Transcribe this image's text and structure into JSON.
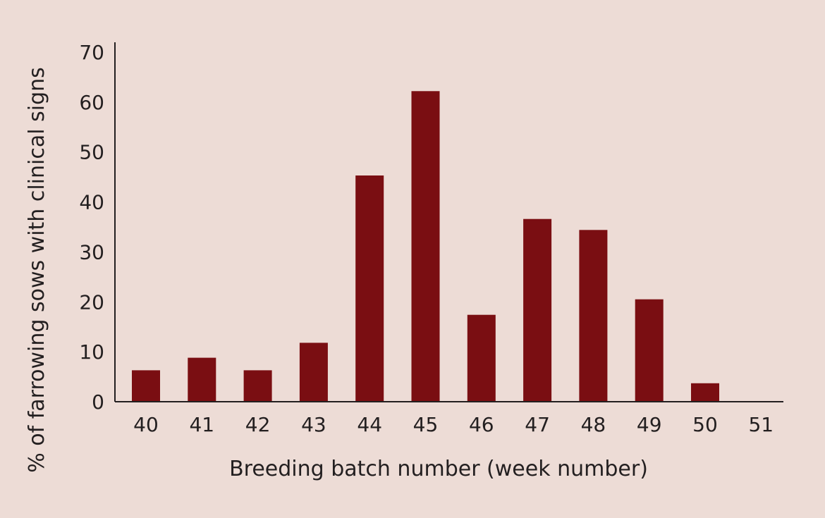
{
  "chart_data": {
    "type": "bar",
    "title": "",
    "xlabel": "Breeding batch number (week number)",
    "ylabel": "% of farrowing sows with clinical signs",
    "categories": [
      "40",
      "41",
      "42",
      "43",
      "44",
      "45",
      "46",
      "47",
      "48",
      "49",
      "50",
      "51"
    ],
    "values": [
      6.3,
      8.8,
      6.3,
      11.8,
      45.3,
      62.2,
      17.4,
      36.6,
      34.4,
      20.5,
      3.7,
      0
    ],
    "ylim": [
      0,
      70
    ],
    "yticks": [
      "0",
      "10",
      "20",
      "30",
      "40",
      "50",
      "60",
      "70"
    ],
    "grid": false,
    "legend": "none"
  },
  "colors": {
    "background": "#eddcd6",
    "bar": "#7a0e12",
    "axis": "#231f20",
    "text": "#231f20"
  }
}
